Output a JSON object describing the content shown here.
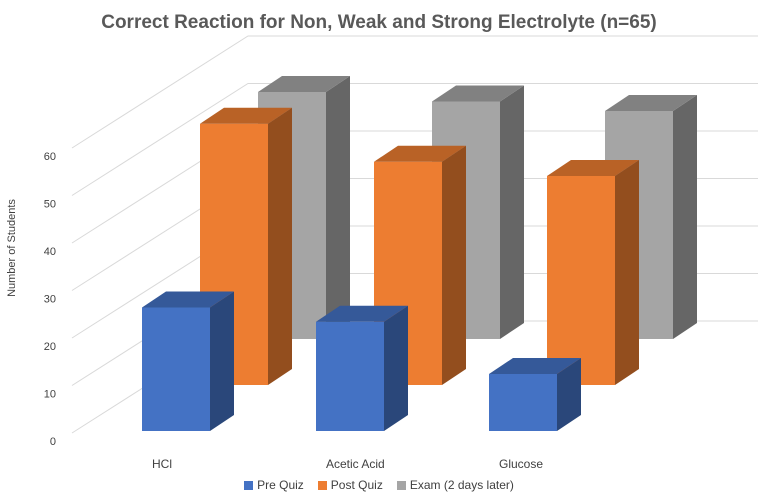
{
  "chart_data": {
    "type": "bar",
    "title": "Correct Reaction for Non, Weak and Strong Electrolyte (n=65)",
    "ylabel": "Number of Students",
    "xlabel": "",
    "categories": [
      "HCl",
      "Acetic Acid",
      "Glucose"
    ],
    "series": [
      {
        "name": "Pre Quiz",
        "values": [
          26,
          23,
          12
        ],
        "color": "#4472C4"
      },
      {
        "name": "Post Quiz",
        "values": [
          55,
          47,
          44
        ],
        "color": "#ED7D31"
      },
      {
        "name": "Exam (2 days later)",
        "values": [
          52,
          50,
          48
        ],
        "color": "#A5A5A5"
      }
    ],
    "ylim": [
      0,
      60
    ],
    "yticks": [
      0,
      10,
      20,
      30,
      40,
      50,
      60
    ],
    "grid": true,
    "legend_position": "bottom",
    "style": "3d-clustered-column"
  }
}
